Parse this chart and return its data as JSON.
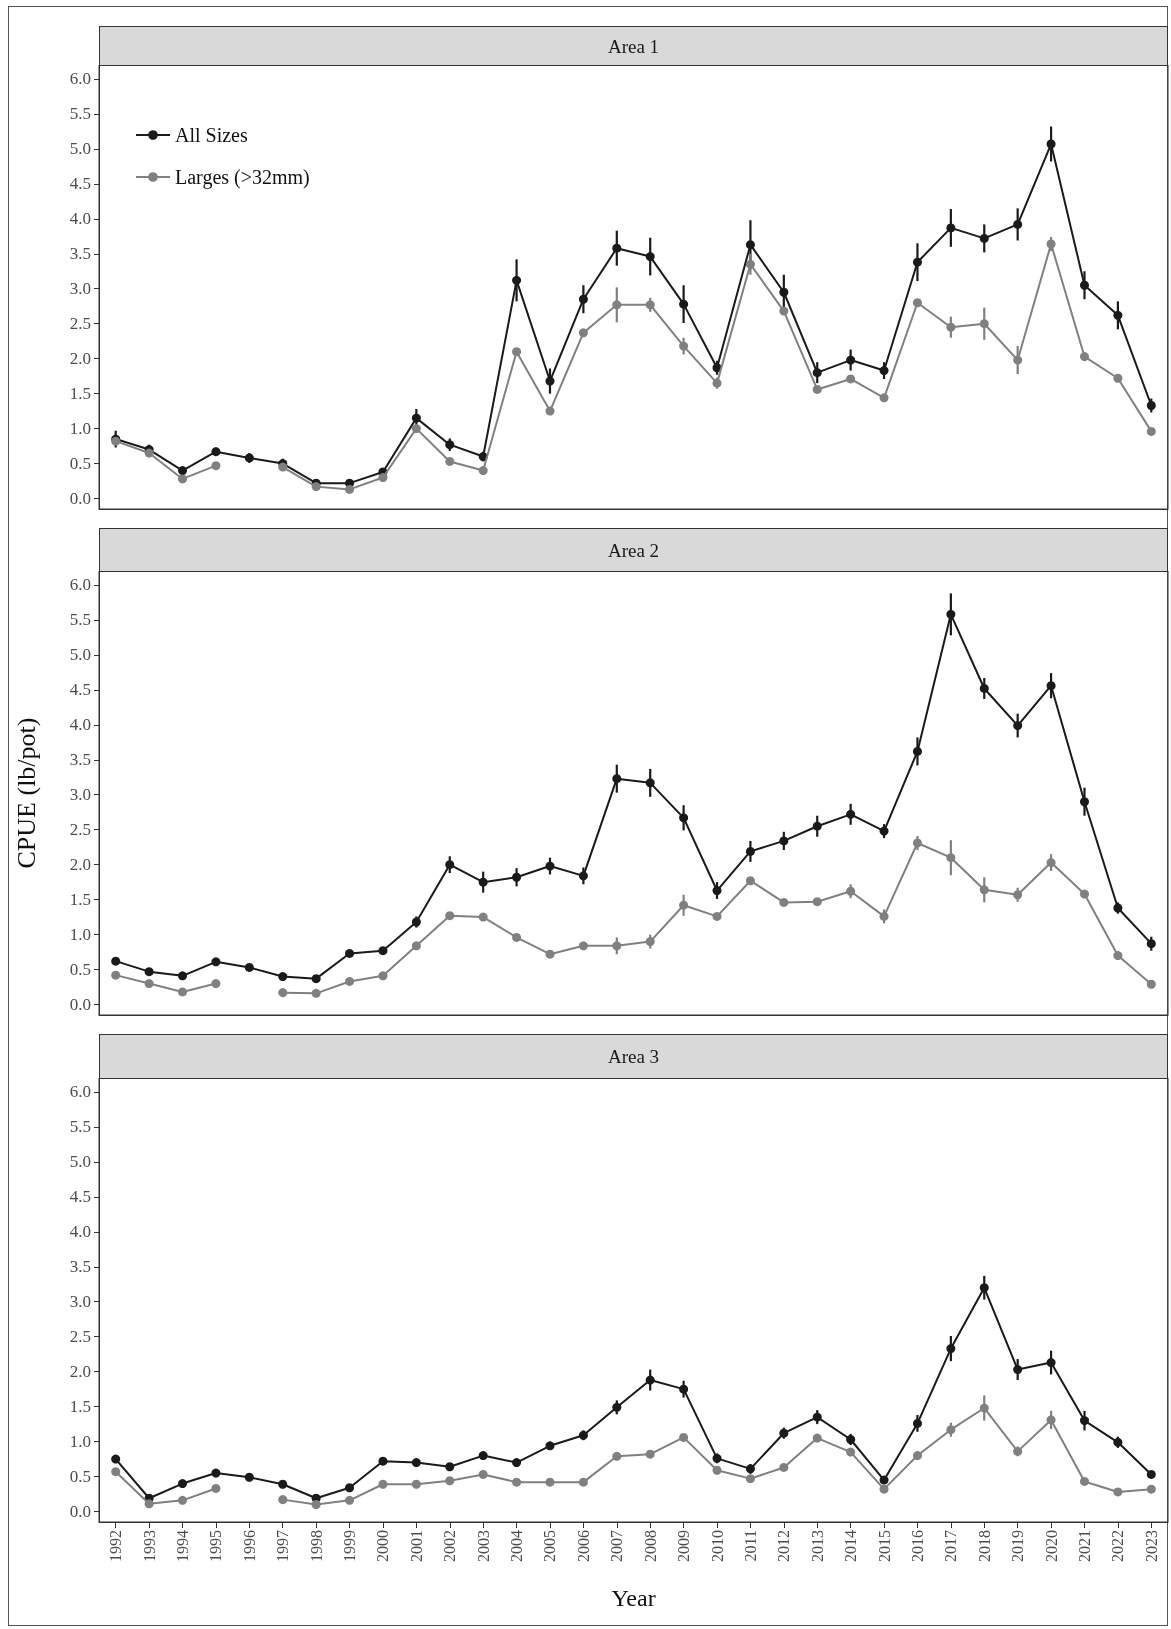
{
  "chart_data": [
    {
      "type": "line",
      "title": "Area 1",
      "categories": [
        "1992",
        "1993",
        "1994",
        "1995",
        "1996",
        "1997",
        "1998",
        "1999",
        "2000",
        "2001",
        "2002",
        "2003",
        "2004",
        "2005",
        "2006",
        "2007",
        "2008",
        "2009",
        "2010",
        "2011",
        "2012",
        "2013",
        "2014",
        "2015",
        "2016",
        "2017",
        "2018",
        "2019",
        "2020",
        "2021",
        "2022",
        "2023"
      ],
      "series": [
        {
          "name": "All Sizes",
          "color": "#1a1a1a",
          "values": [
            0.85,
            0.7,
            0.4,
            0.67,
            0.58,
            0.5,
            0.22,
            0.22,
            0.38,
            1.15,
            0.77,
            0.6,
            3.12,
            1.68,
            2.85,
            3.58,
            3.46,
            2.78,
            1.87,
            3.63,
            2.95,
            1.8,
            1.98,
            1.83,
            3.38,
            3.87,
            3.72,
            3.92,
            5.07,
            3.05,
            2.62,
            1.33
          ],
          "errors": [
            0.12,
            0.07,
            0.05,
            0.06,
            0.07,
            0.07,
            0.04,
            0.04,
            0.05,
            0.13,
            0.09,
            0.07,
            0.3,
            0.18,
            0.2,
            0.25,
            0.27,
            0.27,
            0.1,
            0.35,
            0.25,
            0.15,
            0.15,
            0.12,
            0.27,
            0.27,
            0.2,
            0.23,
            0.25,
            0.2,
            0.2,
            0.1
          ]
        },
        {
          "name": "Larges (>32mm)",
          "color": "#808080",
          "values": [
            0.82,
            0.65,
            0.28,
            0.47,
            null,
            0.45,
            0.17,
            0.13,
            0.3,
            1.0,
            0.53,
            0.4,
            2.1,
            1.25,
            2.37,
            2.77,
            2.77,
            2.18,
            1.65,
            3.35,
            2.68,
            1.56,
            1.71,
            1.44,
            2.8,
            2.45,
            2.5,
            1.98,
            3.64,
            2.03,
            1.72,
            0.96
          ],
          "errors": [
            0.05,
            0.05,
            0.03,
            0.03,
            null,
            0.05,
            0.03,
            0.03,
            0.04,
            0.05,
            0.04,
            0.03,
            0.05,
            0.03,
            0.05,
            0.25,
            0.1,
            0.12,
            0.08,
            0.15,
            0.05,
            0.05,
            0.05,
            0.05,
            0.05,
            0.15,
            0.23,
            0.2,
            0.1,
            0.05,
            0.04,
            0.03
          ]
        }
      ],
      "ylim": [
        -0.15,
        6.2
      ],
      "yticks": [
        {
          "value": 0,
          "label": "0.0"
        },
        {
          "value": 0.5,
          "label": "0.5"
        },
        {
          "value": 1,
          "label": "1.0"
        },
        {
          "value": 1.5,
          "label": "1.5"
        },
        {
          "value": 2,
          "label": "2.0"
        },
        {
          "value": 2.5,
          "label": "2.5"
        },
        {
          "value": 3,
          "label": "3.0"
        },
        {
          "value": 3.5,
          "label": "3.5"
        },
        {
          "value": 4,
          "label": "4.0"
        },
        {
          "value": 4.5,
          "label": "4.5"
        },
        {
          "value": 5,
          "label": "5.0"
        },
        {
          "value": 5.5,
          "label": "5.5"
        },
        {
          "value": 6,
          "label": "6.0"
        }
      ],
      "tick_labels": "y",
      "legend": "top left",
      "marker": "circle",
      "line_style": "solid",
      "grid": false
    },
    {
      "type": "line",
      "title": "Area 2",
      "ylabel": "CPUE (lb/pot)",
      "categories": [
        "1992",
        "1993",
        "1994",
        "1995",
        "1996",
        "1997",
        "1998",
        "1999",
        "2000",
        "2001",
        "2002",
        "2003",
        "2004",
        "2005",
        "2006",
        "2007",
        "2008",
        "2009",
        "2010",
        "2011",
        "2012",
        "2013",
        "2014",
        "2015",
        "2016",
        "2017",
        "2018",
        "2019",
        "2020",
        "2021",
        "2022",
        "2023"
      ],
      "series": [
        {
          "color": "#1a1a1a",
          "values": [
            0.62,
            0.47,
            0.41,
            0.61,
            0.53,
            0.4,
            0.37,
            0.73,
            0.77,
            1.18,
            2.0,
            1.75,
            1.82,
            1.98,
            1.84,
            3.23,
            3.17,
            2.67,
            1.63,
            2.19,
            2.34,
            2.55,
            2.72,
            2.48,
            3.62,
            5.58,
            4.52,
            3.99,
            4.56,
            2.9,
            1.38,
            0.87
          ],
          "errors": [
            0.03,
            0.03,
            0.03,
            0.03,
            0.03,
            0.03,
            0.03,
            0.04,
            0.04,
            0.08,
            0.12,
            0.15,
            0.13,
            0.12,
            0.12,
            0.2,
            0.2,
            0.18,
            0.12,
            0.15,
            0.13,
            0.15,
            0.15,
            0.1,
            0.2,
            0.3,
            0.15,
            0.17,
            0.18,
            0.2,
            0.08,
            0.1
          ]
        },
        {
          "color": "#808080",
          "values": [
            0.42,
            0.3,
            0.18,
            0.3,
            null,
            0.17,
            0.16,
            0.33,
            0.41,
            0.84,
            1.27,
            1.25,
            0.96,
            0.72,
            0.84,
            0.84,
            0.9,
            1.42,
            1.26,
            1.77,
            1.46,
            1.47,
            1.62,
            1.26,
            2.31,
            2.1,
            1.64,
            1.57,
            2.03,
            1.58,
            0.7,
            0.29
          ],
          "errors": [
            0.02,
            0.02,
            0.02,
            0.02,
            null,
            0.02,
            0.02,
            0.03,
            0.03,
            0.04,
            0.04,
            0.04,
            0.04,
            0.03,
            0.04,
            0.12,
            0.1,
            0.15,
            0.04,
            0.04,
            0.04,
            0.04,
            0.1,
            0.1,
            0.1,
            0.25,
            0.18,
            0.1,
            0.12,
            0.05,
            0.03,
            0.02
          ]
        }
      ],
      "ylim": [
        -0.15,
        6.2
      ],
      "yticks": [
        {
          "value": 0,
          "label": "0.0"
        },
        {
          "value": 0.5,
          "label": "0.5"
        },
        {
          "value": 1,
          "label": "1.0"
        },
        {
          "value": 1.5,
          "label": "1.5"
        },
        {
          "value": 2,
          "label": "2.0"
        },
        {
          "value": 2.5,
          "label": "2.5"
        },
        {
          "value": 3,
          "label": "3.0"
        },
        {
          "value": 3.5,
          "label": "3.5"
        },
        {
          "value": 4,
          "label": "4.0"
        },
        {
          "value": 4.5,
          "label": "4.5"
        },
        {
          "value": 5,
          "label": "5.0"
        },
        {
          "value": 5.5,
          "label": "5.5"
        },
        {
          "value": 6,
          "label": "6.0"
        }
      ],
      "tick_labels": "y",
      "marker": "circle",
      "line_style": "solid",
      "grid": false
    },
    {
      "type": "line",
      "title": "Area 3",
      "xlabel": "Year",
      "categories": [
        "1992",
        "1993",
        "1994",
        "1995",
        "1996",
        "1997",
        "1998",
        "1999",
        "2000",
        "2001",
        "2002",
        "2003",
        "2004",
        "2005",
        "2006",
        "2007",
        "2008",
        "2009",
        "2010",
        "2011",
        "2012",
        "2013",
        "2014",
        "2015",
        "2016",
        "2017",
        "2018",
        "2019",
        "2020",
        "2021",
        "2022",
        "2023"
      ],
      "series": [
        {
          "color": "#1a1a1a",
          "values": [
            0.75,
            0.19,
            0.4,
            0.55,
            0.49,
            0.39,
            0.19,
            0.34,
            0.72,
            0.7,
            0.64,
            0.8,
            0.7,
            0.94,
            1.09,
            1.49,
            1.88,
            1.75,
            0.76,
            0.61,
            1.12,
            1.35,
            1.03,
            0.45,
            1.26,
            2.33,
            3.2,
            2.03,
            2.13,
            1.3,
            0.99,
            0.53
          ],
          "errors": [
            0.03,
            0.03,
            0.03,
            0.03,
            0.03,
            0.03,
            0.03,
            0.04,
            0.04,
            0.04,
            0.04,
            0.04,
            0.04,
            0.05,
            0.07,
            0.1,
            0.15,
            0.12,
            0.07,
            0.07,
            0.08,
            0.1,
            0.08,
            0.05,
            0.12,
            0.18,
            0.17,
            0.15,
            0.17,
            0.14,
            0.08,
            0.03
          ]
        },
        {
          "color": "#808080",
          "values": [
            0.57,
            0.11,
            0.16,
            0.33,
            null,
            0.17,
            0.1,
            0.16,
            0.39,
            0.39,
            0.44,
            0.53,
            0.42,
            0.42,
            0.42,
            0.79,
            0.82,
            1.06,
            0.59,
            0.47,
            0.63,
            1.05,
            0.85,
            0.32,
            0.8,
            1.17,
            1.48,
            0.86,
            1.31,
            0.43,
            0.28,
            0.32
          ],
          "errors": [
            0.02,
            0.02,
            0.02,
            0.02,
            null,
            0.02,
            0.02,
            0.02,
            0.02,
            0.02,
            0.02,
            0.02,
            0.02,
            0.02,
            0.02,
            0.03,
            0.03,
            0.03,
            0.03,
            0.02,
            0.03,
            0.03,
            0.03,
            0.03,
            0.05,
            0.1,
            0.18,
            0.07,
            0.13,
            0.03,
            0.02,
            0.02
          ]
        }
      ],
      "ylim": [
        -0.15,
        6.2
      ],
      "yticks": [
        {
          "value": 0,
          "label": "0.0"
        },
        {
          "value": 0.5,
          "label": "0.5"
        },
        {
          "value": 1,
          "label": "1.0"
        },
        {
          "value": 1.5,
          "label": "1.5"
        },
        {
          "value": 2,
          "label": "2.0"
        },
        {
          "value": 2.5,
          "label": "2.5"
        },
        {
          "value": 3,
          "label": "3.0"
        },
        {
          "value": 3.5,
          "label": "3.5"
        },
        {
          "value": 4,
          "label": "4.0"
        },
        {
          "value": 4.5,
          "label": "4.5"
        },
        {
          "value": 5,
          "label": "5.0"
        },
        {
          "value": 5.5,
          "label": "5.5"
        },
        {
          "value": 6,
          "label": "6.0"
        }
      ],
      "marker": "circle",
      "line_style": "solid",
      "grid": false
    }
  ]
}
